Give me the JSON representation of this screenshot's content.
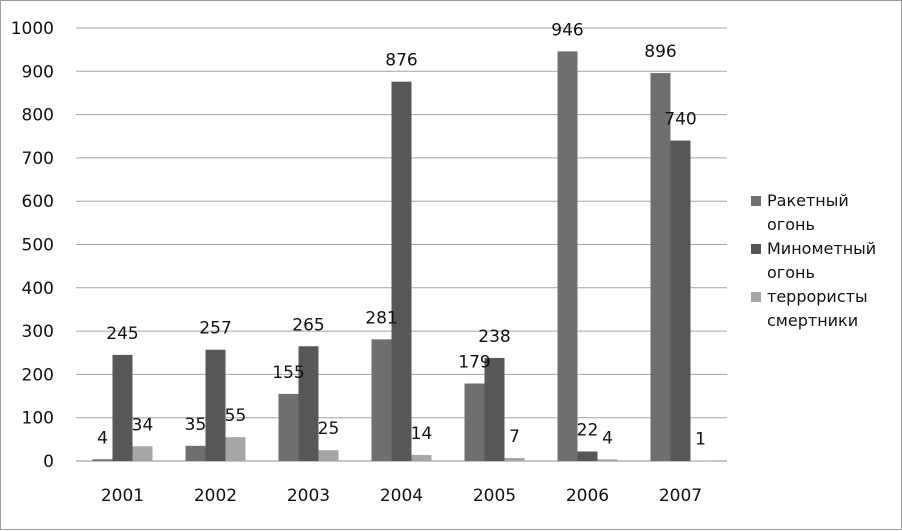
{
  "chart_data": {
    "type": "bar",
    "categories": [
      "2001",
      "2002",
      "2003",
      "2004",
      "2005",
      "2006",
      "2007"
    ],
    "series": [
      {
        "name": "Ракетный огонь",
        "legend_lines": [
          "Ракетный",
          "огонь"
        ],
        "color": "#6f6f6f",
        "values": [
          4,
          35,
          155,
          281,
          179,
          946,
          896
        ]
      },
      {
        "name": "Минометный огонь",
        "legend_lines": [
          "Минометный",
          "огонь"
        ],
        "color": "#575757",
        "values": [
          245,
          257,
          265,
          876,
          238,
          22,
          740
        ]
      },
      {
        "name": "террористы смертники",
        "legend_lines": [
          "террористы",
          "смертники"
        ],
        "color": "#a6a6a6",
        "values": [
          34,
          55,
          25,
          14,
          7,
          4,
          1
        ]
      }
    ],
    "ylim": [
      0,
      1000
    ],
    "yticks": [
      0,
      100,
      200,
      300,
      400,
      500,
      600,
      700,
      800,
      900,
      1000
    ],
    "grid": true,
    "legend_position": "right",
    "data_labels": true
  }
}
